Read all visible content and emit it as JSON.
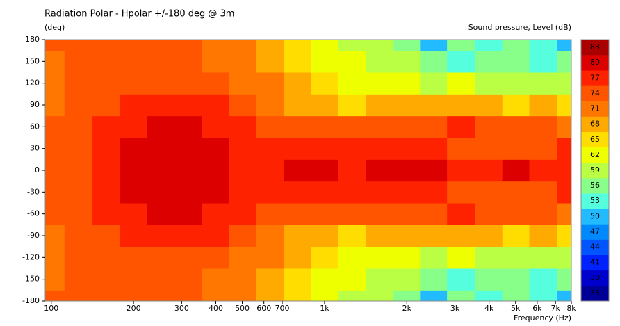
{
  "chart_data": {
    "type": "contour",
    "title": "Radiation Polar - Hpolar +/-180 deg @ 3m",
    "ylabel": "(deg)",
    "xlabel": "Frequency  (Hz)",
    "colorbar_label": "Sound pressure, Level  (dB)",
    "log_x": true,
    "xlim": [
      95,
      8000
    ],
    "ylim": [
      -180,
      180
    ],
    "xticks": [
      100,
      200,
      300,
      400,
      500,
      600,
      700,
      {
        "value": 1000,
        "label": "1k"
      },
      {
        "value": 2000,
        "label": "2k"
      },
      {
        "value": 3000,
        "label": "3k"
      },
      {
        "value": 4000,
        "label": "4k"
      },
      {
        "value": 5000,
        "label": "5k"
      },
      {
        "value": 6000,
        "label": "6k"
      },
      {
        "value": 7000,
        "label": "7k"
      },
      {
        "value": 8000,
        "label": "8k"
      }
    ],
    "yticks": [
      180,
      150,
      120,
      90,
      60,
      30,
      0,
      -30,
      -60,
      -90,
      -120,
      -150,
      -180
    ],
    "x": [
      100,
      125,
      160,
      200,
      250,
      315,
      400,
      500,
      630,
      800,
      1000,
      1250,
      1600,
      2000,
      2500,
      3150,
      4000,
      5000,
      6300,
      8000
    ],
    "y": [
      -180,
      -150,
      -120,
      -90,
      -60,
      -30,
      0,
      30,
      60,
      90,
      120,
      150,
      180
    ],
    "z": [
      [
        74,
        74,
        74,
        74,
        74,
        74,
        71,
        71,
        68,
        65,
        62,
        59,
        59,
        56,
        50,
        56,
        53,
        56,
        53,
        50
      ],
      [
        71,
        74,
        74,
        74,
        74,
        74,
        71,
        71,
        68,
        65,
        62,
        62,
        59,
        59,
        56,
        53,
        56,
        56,
        53,
        56
      ],
      [
        71,
        74,
        74,
        74,
        74,
        74,
        74,
        71,
        71,
        68,
        65,
        62,
        62,
        62,
        59,
        62,
        59,
        59,
        59,
        59
      ],
      [
        71,
        74,
        74,
        77,
        77,
        77,
        77,
        74,
        71,
        68,
        68,
        65,
        68,
        68,
        68,
        68,
        68,
        65,
        68,
        65
      ],
      [
        74,
        74,
        77,
        77,
        80,
        80,
        77,
        77,
        74,
        74,
        74,
        74,
        74,
        74,
        74,
        77,
        74,
        74,
        74,
        71
      ],
      [
        74,
        74,
        77,
        80,
        80,
        80,
        80,
        77,
        77,
        77,
        77,
        77,
        77,
        77,
        77,
        74,
        74,
        74,
        74,
        77
      ],
      [
        74,
        74,
        77,
        80,
        80,
        80,
        80,
        77,
        77,
        80,
        80,
        77,
        80,
        80,
        80,
        77,
        77,
        80,
        77,
        77
      ],
      [
        74,
        74,
        77,
        80,
        80,
        80,
        80,
        77,
        77,
        77,
        77,
        77,
        77,
        77,
        77,
        74,
        74,
        74,
        74,
        77
      ],
      [
        74,
        74,
        77,
        77,
        80,
        80,
        77,
        77,
        74,
        74,
        74,
        74,
        74,
        74,
        74,
        77,
        74,
        74,
        74,
        71
      ],
      [
        71,
        74,
        74,
        77,
        77,
        77,
        77,
        74,
        71,
        68,
        68,
        65,
        68,
        68,
        68,
        68,
        68,
        65,
        68,
        65
      ],
      [
        71,
        74,
        74,
        74,
        74,
        74,
        74,
        71,
        71,
        68,
        65,
        62,
        62,
        62,
        59,
        62,
        59,
        59,
        59,
        59
      ],
      [
        71,
        74,
        74,
        74,
        74,
        74,
        71,
        71,
        68,
        65,
        62,
        62,
        59,
        59,
        56,
        53,
        56,
        56,
        53,
        56
      ],
      [
        74,
        74,
        74,
        74,
        74,
        74,
        71,
        71,
        68,
        65,
        62,
        59,
        59,
        56,
        50,
        56,
        53,
        56,
        53,
        50
      ]
    ],
    "colorbar": {
      "levels": [
        35,
        38,
        41,
        44,
        47,
        50,
        53,
        56,
        59,
        62,
        65,
        68,
        71,
        74,
        77,
        80,
        83
      ],
      "colors": [
        "#000099",
        "#0000cc",
        "#0022ff",
        "#0055ff",
        "#0088ff",
        "#22bbff",
        "#55ffdd",
        "#88ff88",
        "#bbff44",
        "#eeff00",
        "#ffdd00",
        "#ffaa00",
        "#ff7700",
        "#ff5500",
        "#ff2200",
        "#dd0000",
        "#aa0000"
      ]
    }
  }
}
